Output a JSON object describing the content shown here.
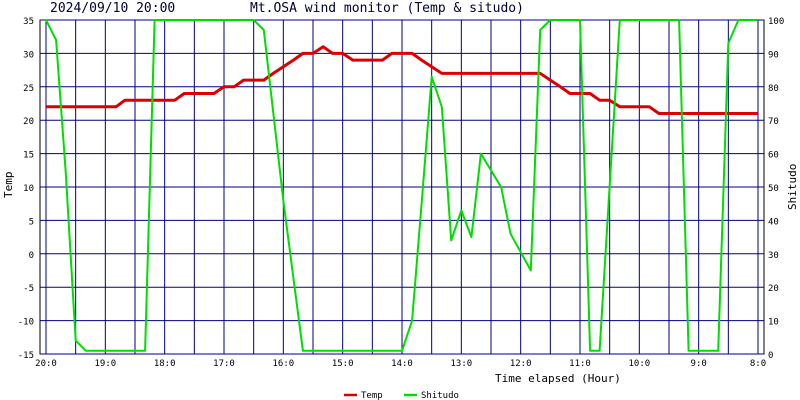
{
  "header": {
    "timestamp": "2024/09/10 20:00",
    "title": "Mt.OSA wind monitor (Temp & situdo)"
  },
  "chart_data": {
    "type": "line",
    "title": "Mt.OSA wind monitor (Temp & situdo)",
    "xlabel": "Time elapsed (Hour)",
    "ylabel_left": "Temp",
    "ylabel_right": "Shitudo",
    "x_tick_labels": [
      "20:0",
      "19:0",
      "18:0",
      "17:0",
      "16:0",
      "15:0",
      "14:0",
      "13:0",
      "12:0",
      "11:0",
      "10:0",
      "9:0",
      "8:0"
    ],
    "x_range_hours_elapsed": [
      0,
      12
    ],
    "ylim_left": [
      -15,
      35
    ],
    "y_ticks_left": [
      "35",
      "30",
      "25",
      "20",
      "15",
      "10",
      "5",
      "0",
      "-5",
      "-10",
      "-15"
    ],
    "ylim_right": [
      0,
      100
    ],
    "y_ticks_right": [
      "100",
      "90",
      "80",
      "70",
      "60",
      "50",
      "40",
      "30",
      "20",
      "10",
      "0"
    ],
    "grid": true,
    "legend_position": "bottom-center",
    "series": [
      {
        "name": "Temp",
        "axis": "left",
        "color": "#dd0000",
        "x": [
          0,
          1.18,
          1.33,
          2.17,
          2.33,
          2.83,
          3.0,
          3.17,
          3.33,
          3.67,
          3.83,
          4.0,
          4.17,
          4.33,
          4.5,
          4.67,
          4.83,
          5.0,
          5.17,
          5.33,
          5.5,
          5.67,
          5.83,
          6.0,
          6.17,
          6.33,
          6.5,
          6.67,
          6.83,
          7.0,
          7.17,
          7.33,
          7.5,
          7.67,
          7.83,
          8.0,
          8.17,
          8.33,
          8.5,
          8.67,
          8.83,
          9.0,
          9.17,
          9.33,
          9.5,
          9.67,
          9.83,
          10.0,
          10.17,
          10.33,
          10.5,
          10.67,
          10.83,
          11.0,
          11.17,
          11.33,
          11.5,
          11.67,
          11.83,
          12.0
        ],
        "values": [
          22,
          22,
          23,
          23,
          24,
          24,
          25,
          25,
          26,
          26,
          27,
          28,
          29,
          30,
          30,
          31,
          30,
          30,
          29,
          29,
          29,
          29,
          30,
          30,
          30,
          29,
          28,
          27,
          27,
          27,
          27,
          27,
          27,
          27,
          27,
          27,
          27,
          27,
          26,
          25,
          24,
          24,
          24,
          23,
          23,
          22,
          22,
          22,
          22,
          21,
          21,
          21,
          21,
          21,
          21,
          21,
          21,
          21,
          21,
          21
        ]
      },
      {
        "name": "Shitudo",
        "axis": "right",
        "color": "#00dd00",
        "x": [
          0,
          0.17,
          0.33,
          0.5,
          0.67,
          1.67,
          1.83,
          3.5,
          3.67,
          4.0,
          4.33,
          6.0,
          6.17,
          6.33,
          6.5,
          6.67,
          6.83,
          7.0,
          7.17,
          7.33,
          7.5,
          7.67,
          7.83,
          8.17,
          8.33,
          8.5,
          8.67,
          9.0,
          9.17,
          9.33,
          9.67,
          10.67,
          10.83,
          11.33,
          11.5,
          11.67,
          11.83,
          12.0
        ],
        "values": [
          100,
          94,
          55,
          4,
          1,
          1,
          100,
          100,
          97,
          46,
          1,
          1,
          10,
          45,
          83,
          74,
          34,
          43,
          35,
          60,
          55,
          50,
          36,
          25,
          97,
          100,
          100,
          100,
          1,
          1,
          100,
          100,
          1,
          1,
          93,
          100,
          100,
          100
        ]
      }
    ]
  }
}
